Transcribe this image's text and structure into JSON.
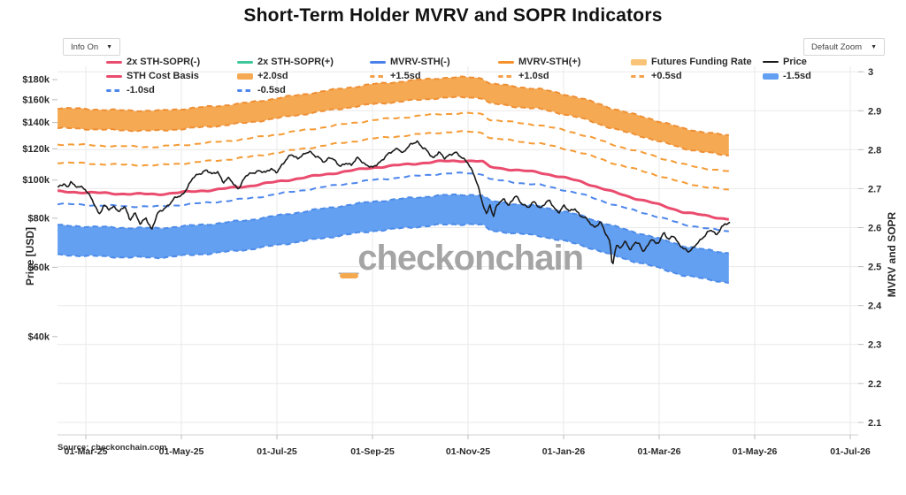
{
  "title": "Short-Term Holder MVRV and SOPR Indicators",
  "controls": {
    "info_label": "Info On",
    "zoom_label": "Default Zoom",
    "chevron": "▼"
  },
  "source": "Source: checkonchain.com",
  "watermark": {
    "text": "_checkonchain",
    "accent_color": "#f5a94f"
  },
  "legend": {
    "items": [
      {
        "label": "2x STH-SOPR(-)",
        "marker": "line",
        "color": "#ea4c6e",
        "row": 0,
        "col": 0
      },
      {
        "label": "2x STH-SOPR(+)",
        "marker": "line",
        "color": "#3dc79b",
        "row": 0,
        "col": 1
      },
      {
        "label": "MVRV-STH(-)",
        "marker": "line",
        "color": "#4a80e8",
        "row": 0,
        "col": 2
      },
      {
        "label": "MVRV-STH(+)",
        "marker": "line",
        "color": "#f5902a",
        "row": 0,
        "col": 3
      },
      {
        "label": "Futures Funding Rate",
        "marker": "band",
        "color": "#f9c477",
        "row": 0,
        "col": 4
      },
      {
        "label": "Price",
        "marker": "line",
        "color": "#1a1a1a",
        "thin": true,
        "row": 0,
        "col": 5
      },
      {
        "label": "STH Cost Basis",
        "marker": "line",
        "color": "#ea4c6e",
        "row": 1,
        "col": 0
      },
      {
        "label": "+2.0sd",
        "marker": "band",
        "color": "#f5a952",
        "row": 1,
        "col": 1
      },
      {
        "label": "+1.5sd",
        "marker": "dash",
        "color": "#f5a04a",
        "row": 1,
        "col": 2
      },
      {
        "label": "+1.0sd",
        "marker": "dash",
        "color": "#f5a04a",
        "row": 1,
        "col": 3
      },
      {
        "label": "+0.5sd",
        "marker": "dash",
        "color": "#f5a04a",
        "row": 1,
        "col": 4
      },
      {
        "label": "-1.5sd",
        "marker": "band",
        "color": "#63a0f2",
        "row": 1,
        "col": 5
      },
      {
        "label": "-1.0sd",
        "marker": "dash",
        "color": "#4d86ec",
        "row": 2,
        "col": 0
      },
      {
        "label": "-0.5sd",
        "marker": "dash",
        "color": "#4d86ec",
        "row": 2,
        "col": 1
      }
    ]
  },
  "chart_data": {
    "type": "line",
    "title": "Short-Term Holder MVRV and SOPR Indicators",
    "x_axis": {
      "tick_labels": [
        "01-Mar-25",
        "01-May-25",
        "01-Jul-25",
        "01-Sep-25",
        "01-Nov-25",
        "01-Jan-26",
        "01-Mar-26",
        "01-May-26",
        "01-Jul-26"
      ],
      "tick_months": [
        0,
        2,
        4,
        6,
        8,
        10,
        12,
        14,
        16
      ]
    },
    "y_left": {
      "label": "Price [USD]",
      "scale": "log",
      "tick_values_k": [
        180,
        160,
        140,
        120,
        100,
        80,
        60,
        40
      ],
      "tick_labels": [
        "$180k",
        "$160k",
        "$140k",
        "$120k",
        "$100k",
        "$80k",
        "$60k",
        "$40k"
      ],
      "top_k": 194.6,
      "bottom_k": 22.5
    },
    "y_right": {
      "label": "MVRV and SOPR",
      "tick_values": [
        3,
        2.9,
        2.8,
        2.7,
        2.6,
        2.5,
        2.4,
        2.3,
        2.2,
        2.1
      ],
      "tick_labels": [
        "3",
        "2.9",
        "2.8",
        "2.7",
        "2.6",
        "2.5",
        "2.4",
        "2.3",
        "2.2",
        "2.1"
      ],
      "top": 3.014,
      "bottom": 2.068
    },
    "grid": {
      "color": "#e9e9e9",
      "axis_line_color": "#d0d0d0",
      "tick_color": "#bbbbbb"
    },
    "series": {
      "cost_basis": {
        "name": "STH Cost Basis",
        "color": "#ea4c6e",
        "points": [
          [
            -0.59,
            93.5
          ],
          [
            0,
            93
          ],
          [
            0.7,
            92.3
          ],
          [
            1.5,
            92
          ],
          [
            2,
            93
          ],
          [
            2.7,
            94.5
          ],
          [
            3.4,
            96.5
          ],
          [
            4,
            99
          ],
          [
            4.7,
            102
          ],
          [
            5.4,
            105
          ],
          [
            6,
            107.5
          ],
          [
            6.7,
            109.5
          ],
          [
            7.4,
            111.5
          ],
          [
            8,
            112
          ],
          [
            8.3,
            111.5
          ],
          [
            8.45,
            108
          ],
          [
            9,
            106
          ],
          [
            9.5,
            104.5
          ],
          [
            10,
            101.5
          ],
          [
            10.3,
            99.5
          ],
          [
            10.6,
            97
          ],
          [
            11,
            93.5
          ],
          [
            11.4,
            90.5
          ],
          [
            11.8,
            88
          ],
          [
            12,
            86.5
          ],
          [
            12.5,
            83
          ],
          [
            13,
            81
          ],
          [
            13.3,
            80
          ],
          [
            13.5,
            79.5
          ]
        ]
      },
      "price": {
        "name": "Price",
        "color": "#1a1a1a",
        "points": [
          [
            -0.59,
            96
          ],
          [
            -0.5,
            97.5
          ],
          [
            -0.45,
            98.5
          ],
          [
            -0.38,
            95
          ],
          [
            -0.31,
            99
          ],
          [
            -0.22,
            96
          ],
          [
            -0.12,
            97
          ],
          [
            0,
            94
          ],
          [
            0.08,
            91
          ],
          [
            0.18,
            87
          ],
          [
            0.28,
            82
          ],
          [
            0.38,
            86
          ],
          [
            0.48,
            84
          ],
          [
            0.6,
            86
          ],
          [
            0.7,
            83
          ],
          [
            0.82,
            85.5
          ],
          [
            0.92,
            79
          ],
          [
            1.02,
            83
          ],
          [
            1.14,
            77
          ],
          [
            1.26,
            80
          ],
          [
            1.38,
            75
          ],
          [
            1.5,
            82
          ],
          [
            1.62,
            84
          ],
          [
            1.74,
            87
          ],
          [
            1.87,
            90
          ],
          [
            2,
            91
          ],
          [
            2.1,
            95
          ],
          [
            2.24,
            101
          ],
          [
            2.4,
            104
          ],
          [
            2.52,
            106.5
          ],
          [
            2.64,
            103
          ],
          [
            2.76,
            105
          ],
          [
            2.88,
            99
          ],
          [
            3,
            101
          ],
          [
            3.1,
            97
          ],
          [
            3.2,
            95.5
          ],
          [
            3.34,
            102
          ],
          [
            3.48,
            104
          ],
          [
            3.62,
            106
          ],
          [
            3.76,
            104
          ],
          [
            3.88,
            107
          ],
          [
            4,
            105
          ],
          [
            4.14,
            110
          ],
          [
            4.3,
            117
          ],
          [
            4.44,
            113
          ],
          [
            4.55,
            115.5
          ],
          [
            4.68,
            119
          ],
          [
            4.8,
            115
          ],
          [
            4.9,
            113
          ],
          [
            5,
            111
          ],
          [
            5.1,
            115
          ],
          [
            5.2,
            112
          ],
          [
            5.32,
            108
          ],
          [
            5.44,
            111
          ],
          [
            5.56,
            109
          ],
          [
            5.7,
            114
          ],
          [
            5.84,
            110
          ],
          [
            6,
            107
          ],
          [
            6.14,
            111
          ],
          [
            6.28,
            115
          ],
          [
            6.42,
            118
          ],
          [
            6.53,
            121
          ],
          [
            6.64,
            117
          ],
          [
            6.8,
            123
          ],
          [
            6.93,
            126
          ],
          [
            7.04,
            121
          ],
          [
            7.15,
            118
          ],
          [
            7.27,
            114
          ],
          [
            7.39,
            118
          ],
          [
            7.5,
            113
          ],
          [
            7.61,
            116
          ],
          [
            7.73,
            118
          ],
          [
            7.85,
            114
          ],
          [
            8,
            111
          ],
          [
            8.1,
            105
          ],
          [
            8.2,
            97
          ],
          [
            8.28,
            89
          ],
          [
            8.34,
            85
          ],
          [
            8.39,
            82
          ],
          [
            8.46,
            87
          ],
          [
            8.53,
            80
          ],
          [
            8.6,
            86
          ],
          [
            8.68,
            88
          ],
          [
            8.76,
            90
          ],
          [
            8.85,
            86
          ],
          [
            9,
            91
          ],
          [
            9.1,
            88
          ],
          [
            9.27,
            85
          ],
          [
            9.39,
            88
          ],
          [
            9.5,
            85
          ],
          [
            9.6,
            87
          ],
          [
            9.7,
            88.5
          ],
          [
            9.8,
            85
          ],
          [
            9.9,
            83
          ],
          [
            10,
            86
          ],
          [
            10.12,
            83
          ],
          [
            10.24,
            85
          ],
          [
            10.35,
            81
          ],
          [
            10.44,
            80
          ],
          [
            10.55,
            78
          ],
          [
            10.65,
            76
          ],
          [
            10.77,
            78
          ],
          [
            10.88,
            73
          ],
          [
            10.97,
            70
          ],
          [
            11.02,
            60.5
          ],
          [
            11.1,
            68
          ],
          [
            11.2,
            67
          ],
          [
            11.3,
            70
          ],
          [
            11.4,
            66.5
          ],
          [
            11.5,
            69.5
          ],
          [
            11.58,
            68.5
          ],
          [
            11.66,
            66
          ],
          [
            11.75,
            68
          ],
          [
            11.84,
            71
          ],
          [
            11.93,
            68.5
          ],
          [
            12,
            69.5
          ],
          [
            12.1,
            74
          ],
          [
            12.2,
            70.5
          ],
          [
            12.3,
            72
          ],
          [
            12.4,
            69
          ],
          [
            12.5,
            67.5
          ],
          [
            12.62,
            65.5
          ],
          [
            12.72,
            67
          ],
          [
            12.82,
            70
          ],
          [
            12.92,
            71.5
          ],
          [
            13.02,
            73.5
          ],
          [
            13.12,
            74.5
          ],
          [
            13.2,
            72.5
          ],
          [
            13.3,
            76
          ],
          [
            13.4,
            77
          ],
          [
            13.5,
            78
          ]
        ]
      },
      "sd_lines": [
        {
          "name": "+1.0sd",
          "factor": 1.32,
          "color": "#f59b35"
        },
        {
          "name": "+0.5sd",
          "factor": 1.185,
          "color": "#f59b35"
        },
        {
          "name": "-0.5sd",
          "factor": 0.93,
          "color": "#4d86ec"
        }
      ],
      "sd_bands": [
        {
          "name": "+2.0sd",
          "upper_name": "+2.0sd",
          "lower_name": "+1.5sd",
          "f_top": 1.63,
          "f_bot": 1.45,
          "fill": "#f5a952",
          "edge": "#ee8f35"
        },
        {
          "name": "-1.5sd",
          "upper_name": "-1.0sd",
          "lower_name": "-1.5sd",
          "f_top": 0.82,
          "f_bot": 0.69,
          "fill": "#63a0f2",
          "edge": "#4d8be8"
        }
      ],
      "x_domain_months": [
        -0.59,
        13.5
      ]
    }
  }
}
